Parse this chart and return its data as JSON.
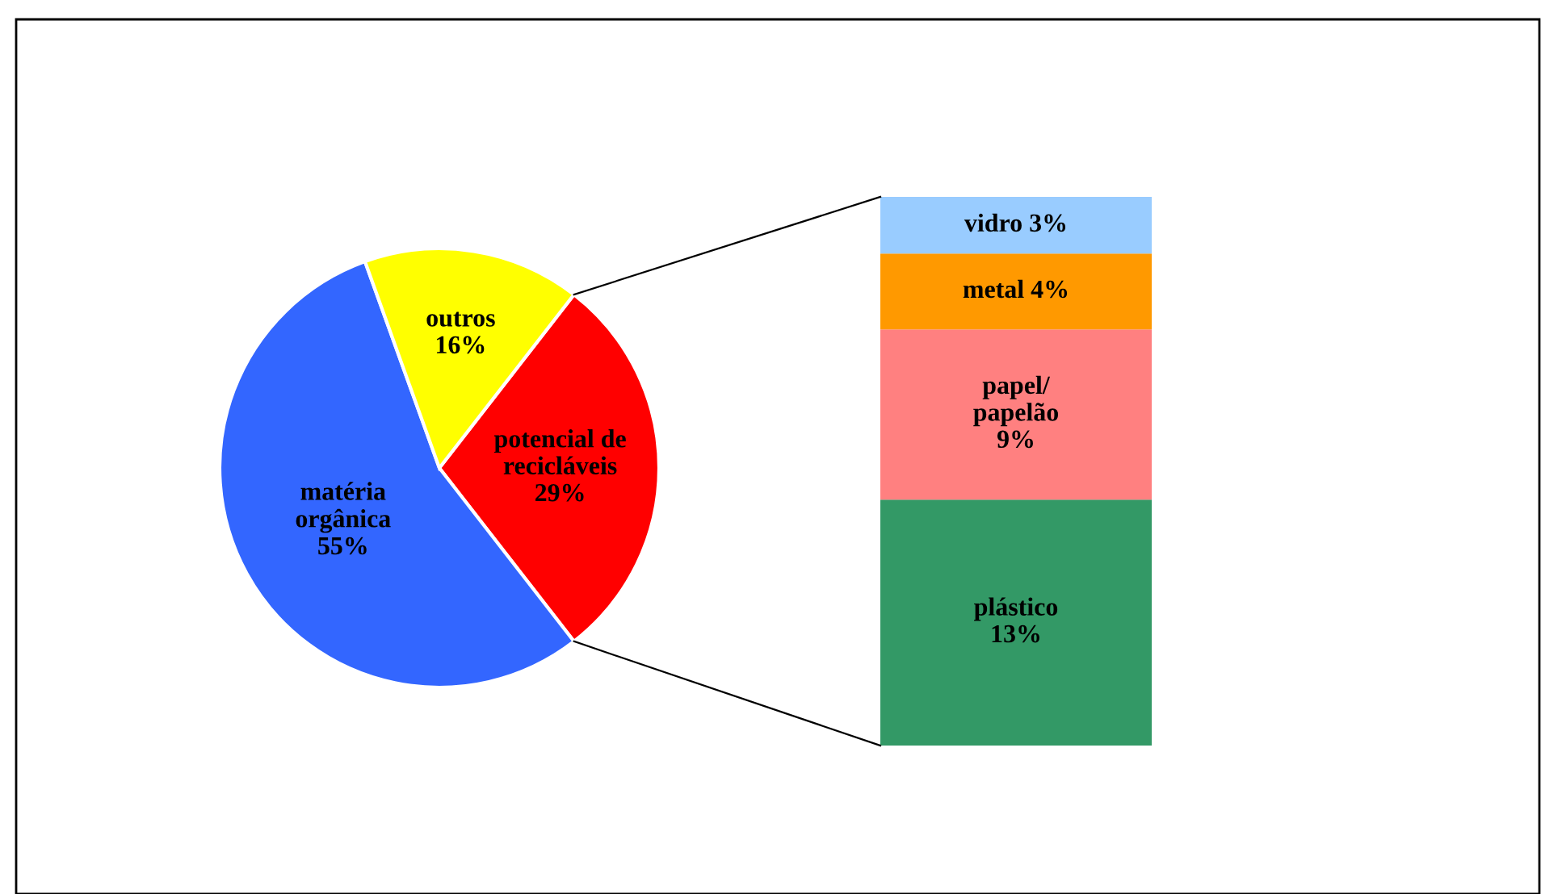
{
  "chart_data": [
    {
      "type": "pie",
      "categories": [
        "potencial de\nrecicláveis",
        "matéria\norgânica",
        "outros"
      ],
      "values": [
        29,
        55,
        16
      ],
      "colors": [
        "#ff0000",
        "#3366ff",
        "#ffff00"
      ],
      "value_labels": [
        "29%",
        "55%",
        "16%"
      ]
    },
    {
      "type": "bar",
      "stacked": true,
      "categories": [
        null
      ],
      "series": [
        {
          "name": "plástico",
          "color": "#339966",
          "values": [
            13
          ],
          "value_labels": [
            "13%"
          ]
        },
        {
          "name": "papel/\npapelão",
          "color": "#ff8080",
          "values": [
            9
          ],
          "value_labels": [
            "9%"
          ]
        },
        {
          "name": "metal",
          "color": "#ff9900",
          "values": [
            4
          ],
          "value_labels": [
            "4%"
          ]
        },
        {
          "name": "vidro",
          "color": "#99ccff",
          "values": [
            3
          ],
          "value_labels": [
            "3%"
          ]
        }
      ]
    }
  ]
}
